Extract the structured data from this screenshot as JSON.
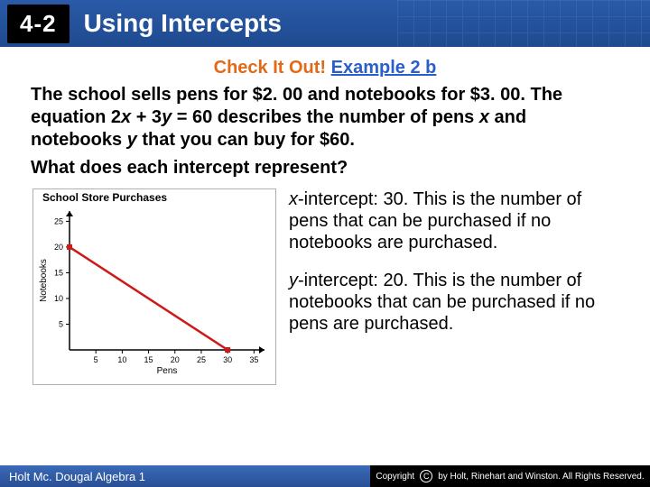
{
  "header": {
    "section_number": "4-2",
    "title": "Using Intercepts",
    "bg_gradient_top": "#2a5aa8",
    "bg_gradient_bottom": "#1e4a8f"
  },
  "check_it_out": {
    "label": "Check It Out!",
    "example": "Example 2 b",
    "orange": "#e06a1a",
    "blue": "#2a5ec8"
  },
  "problem": {
    "line1a": "The school sells pens for $2. 00 and notebooks for $3. 00. The equation 2",
    "var1": "x",
    "line1b": " + 3",
    "var2": "y",
    "line1c": " = 60 describes the number of pens ",
    "var3": "x",
    "line1d": " and notebooks ",
    "var4": "y",
    "line1e": " that you can buy for $60."
  },
  "question": "What does each intercept represent?",
  "chart": {
    "title": "School Store Purchases",
    "xlabel": "Pens",
    "ylabel": "Notebooks",
    "x_ticks": [
      5,
      10,
      15,
      20,
      25,
      30,
      35
    ],
    "y_ticks": [
      5,
      10,
      15,
      20,
      25
    ],
    "xlim": [
      0,
      37
    ],
    "ylim": [
      0,
      27
    ],
    "line_points": [
      [
        0,
        20
      ],
      [
        30,
        0
      ]
    ],
    "line_color": "#d01818",
    "axis_color": "#000000",
    "tick_fontsize": 9,
    "label_fontsize": 10
  },
  "answers": {
    "x_var": "x",
    "x_text": "-intercept: 30. This is the number of pens that can be purchased if no notebooks are purchased.",
    "y_var": "y",
    "y_text": "-intercept: 20. This is the number of notebooks that can be purchased if no pens are purchased."
  },
  "footer": {
    "left": "Holt Mc. Dougal Algebra 1",
    "right_brand": "Copyright",
    "right_text": "by Holt, Rinehart and Winston. All Rights Reserved."
  }
}
